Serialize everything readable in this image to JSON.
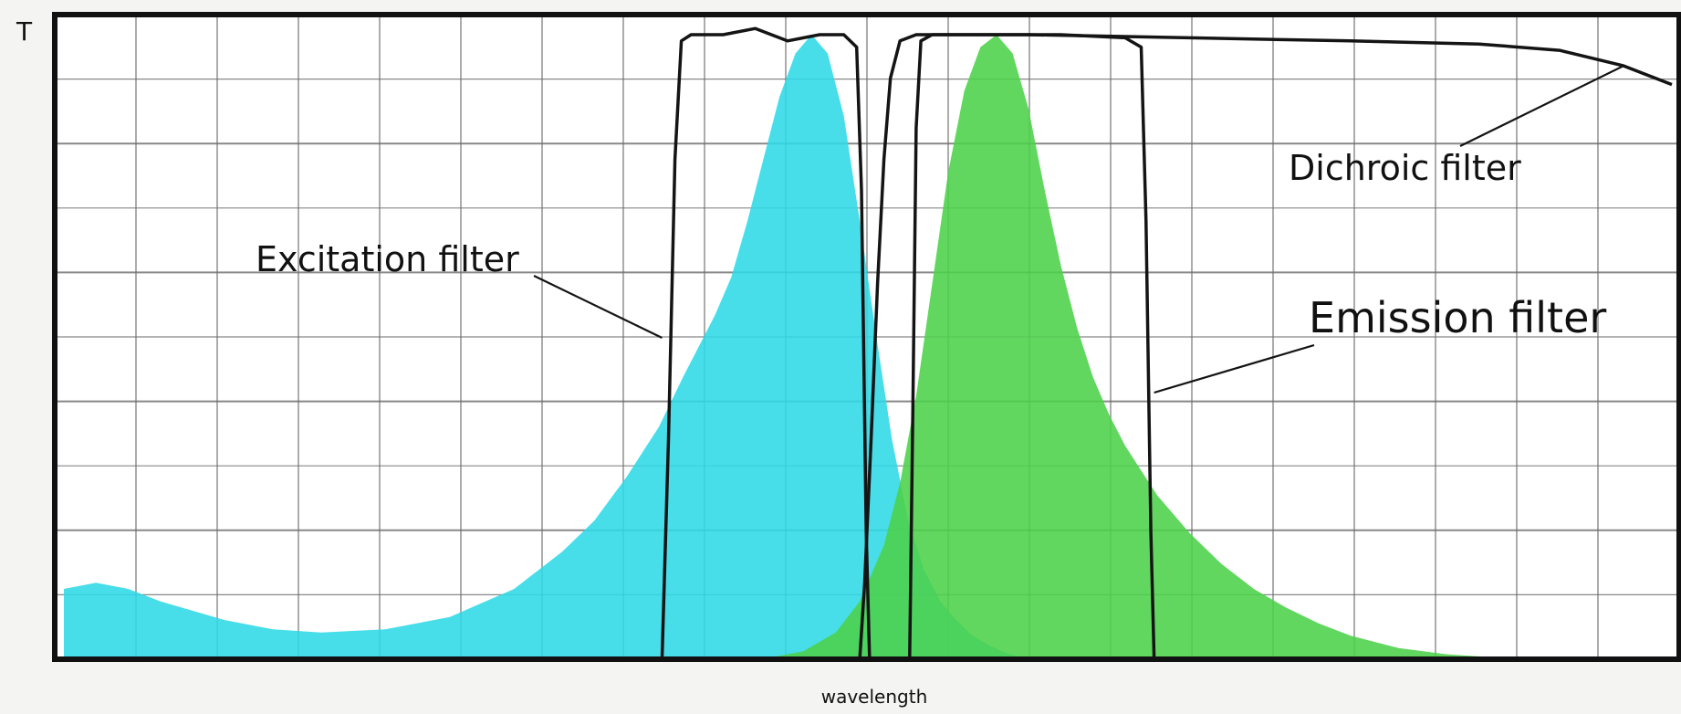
{
  "chart_data": {
    "type": "area",
    "title": "",
    "ylabel": "T",
    "xlabel": "wavelength",
    "xlim": [
      0,
      100
    ],
    "ylim": [
      0,
      1
    ],
    "grid": true,
    "legend": "none",
    "colors": {
      "excitation_spectrum": "#2ed8e6",
      "emission_spectrum": "#4cd24a",
      "filter_lines": "#141414",
      "grid": "#6b6b6b",
      "frame": "#111111",
      "background": "#ffffff"
    },
    "series": [
      {
        "kind": "spectrum",
        "x": [
          0,
          2,
          4,
          6,
          8,
          10,
          13,
          16,
          20,
          24,
          28,
          31,
          33,
          35,
          37,
          38.5,
          39.5,
          40.5,
          41.5,
          42.5,
          43.5,
          44.5,
          45.5,
          46.5,
          47.5,
          48.5,
          49.5,
          50.5,
          51.5,
          52.5,
          53.5,
          54.5,
          55.5,
          56.5,
          57.5,
          58.5,
          59.5
        ],
        "y": [
          0.11,
          0.12,
          0.11,
          0.09,
          0.075,
          0.06,
          0.045,
          0.04,
          0.045,
          0.065,
          0.11,
          0.17,
          0.22,
          0.29,
          0.37,
          0.45,
          0.5,
          0.55,
          0.61,
          0.7,
          0.8,
          0.9,
          0.97,
          1.0,
          0.97,
          0.87,
          0.7,
          0.52,
          0.35,
          0.22,
          0.14,
          0.09,
          0.06,
          0.035,
          0.02,
          0.008,
          0.0
        ]
      },
      {
        "kind": "spectrum",
        "x": [
          44,
          46,
          48,
          49.5,
          51,
          52,
          53,
          54,
          55,
          56,
          57,
          58,
          59,
          60,
          61,
          62,
          63,
          64,
          65,
          66,
          67,
          68,
          70,
          72,
          74,
          76,
          78,
          80,
          83,
          86,
          89,
          92,
          96,
          100
        ],
        "y": [
          0.0,
          0.01,
          0.04,
          0.09,
          0.18,
          0.28,
          0.42,
          0.6,
          0.78,
          0.91,
          0.98,
          1.0,
          0.97,
          0.88,
          0.75,
          0.63,
          0.53,
          0.45,
          0.39,
          0.34,
          0.3,
          0.26,
          0.2,
          0.15,
          0.11,
          0.08,
          0.055,
          0.035,
          0.015,
          0.005,
          0.0,
          0.0,
          0.0,
          0.0
        ]
      },
      {
        "kind": "filter",
        "x": [
          37.2,
          37.6,
          38.0,
          38.4,
          39.0,
          41.0,
          43.0,
          45.0,
          47.0,
          48.5,
          49.3,
          49.6,
          49.9,
          50.1
        ],
        "y": [
          0.0,
          0.35,
          0.8,
          0.99,
          1.0,
          1.0,
          1.01,
          0.99,
          1.0,
          1.0,
          0.98,
          0.75,
          0.2,
          0.0
        ]
      },
      {
        "kind": "filter",
        "x": [
          49.5,
          49.8,
          50.2,
          50.6,
          51.0,
          51.4,
          52.0,
          53.0,
          54.0,
          56.0,
          60.0,
          70.0,
          80.0,
          88.0,
          93.0,
          97.0,
          100.0
        ],
        "y": [
          0.0,
          0.12,
          0.35,
          0.6,
          0.8,
          0.93,
          0.99,
          1.0,
          1.0,
          1.0,
          1.0,
          0.995,
          0.99,
          0.985,
          0.975,
          0.95,
          0.92
        ]
      },
      {
        "kind": "filter",
        "x": [
          52.6,
          52.8,
          53.0,
          53.3,
          54.0,
          58.0,
          62.0,
          66.0,
          67.0,
          67.3,
          67.6,
          67.8
        ],
        "y": [
          0.0,
          0.4,
          0.85,
          0.99,
          1.0,
          1.0,
          1.0,
          0.995,
          0.98,
          0.7,
          0.2,
          0.0
        ]
      }
    ],
    "annotations": [
      {
        "text": "Excitation filter",
        "target_series": 2
      },
      {
        "text": "Dichroic filter",
        "target_series": 3
      },
      {
        "text": "Emission filter",
        "target_series": 4
      }
    ]
  }
}
